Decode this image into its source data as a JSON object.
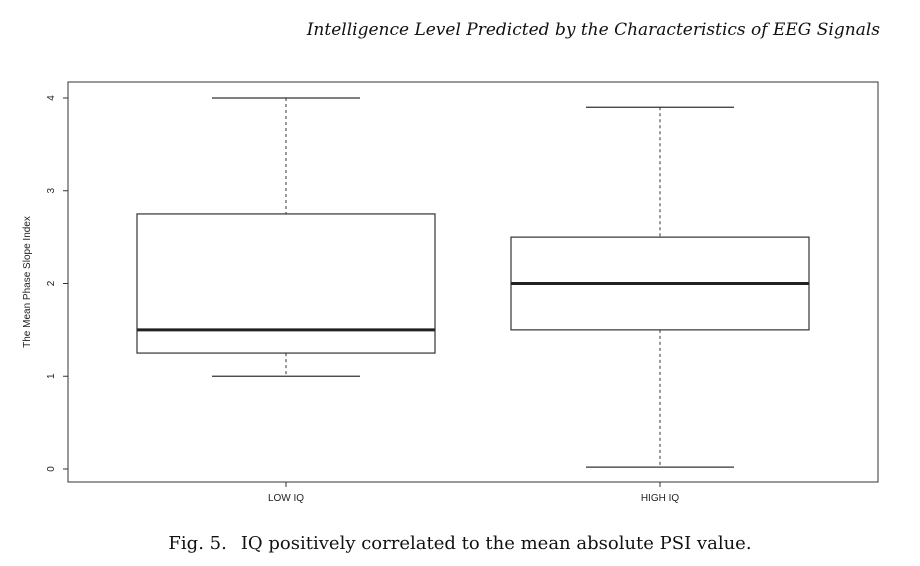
{
  "header": {
    "running_title": "Intelligence Level Predicted by the Characteristics of EEG Signals"
  },
  "caption": {
    "label": "Fig. 5.",
    "text": "IQ positively correlated to the mean absolute PSI value."
  },
  "chart_data": {
    "type": "box",
    "ylabel": "The Mean Phase Slope Index",
    "xlabel": "",
    "ylim": [
      0,
      4
    ],
    "yticks": [
      "0",
      "1",
      "2",
      "3",
      "4"
    ],
    "categories": [
      "LOW IQ",
      "HIGH IQ"
    ],
    "boxes": [
      {
        "name": "LOW IQ",
        "min": 1.0,
        "q1": 1.25,
        "median": 1.5,
        "q3": 2.75,
        "max": 4.0
      },
      {
        "name": "HIGH IQ",
        "min": 0.02,
        "q1": 1.5,
        "median": 2.0,
        "q3": 2.5,
        "max": 3.9
      }
    ],
    "grid": false,
    "legend": "none"
  }
}
